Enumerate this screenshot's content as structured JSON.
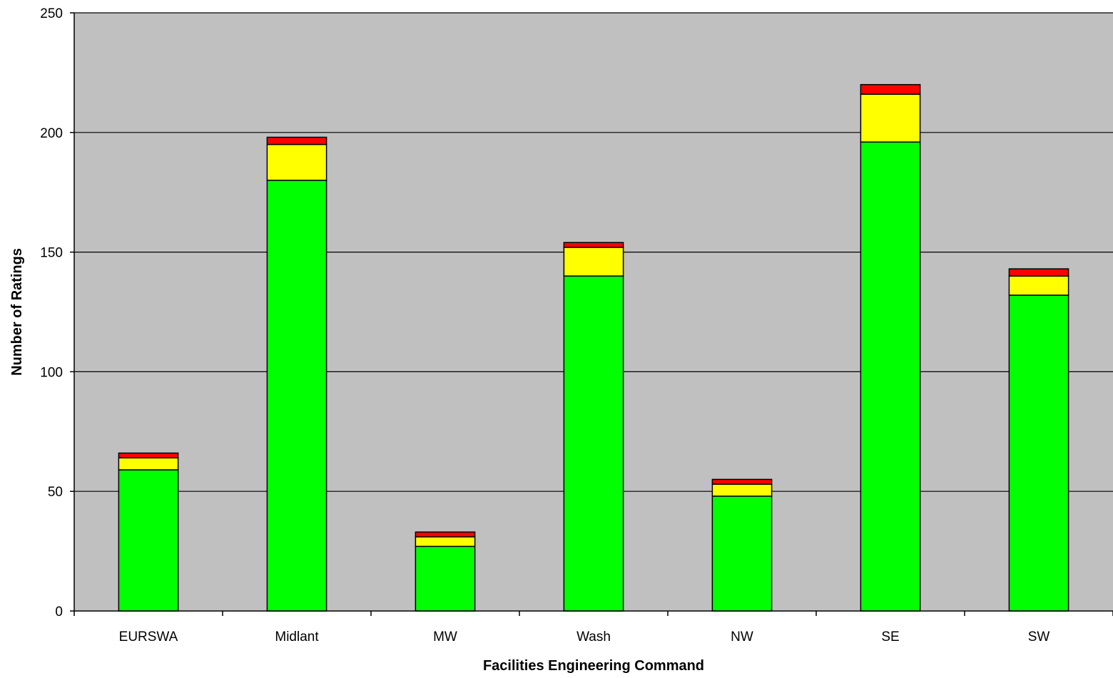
{
  "chart_data": {
    "type": "bar",
    "stacked": true,
    "title": "",
    "xlabel": "Facilities Engineering Command",
    "ylabel": "Number of Ratings",
    "ylim": [
      0,
      250
    ],
    "yticks": [
      0,
      50,
      100,
      150,
      200,
      250
    ],
    "grid": true,
    "legend": "none",
    "categories": [
      "EURSWA",
      "Midlant",
      "MW",
      "Wash",
      "NW",
      "SE",
      "SW"
    ],
    "series": [
      {
        "color": "#00ff00",
        "values": [
          59,
          180,
          27,
          140,
          48,
          196,
          132
        ]
      },
      {
        "color": "#ffff00",
        "values": [
          5,
          15,
          4,
          12,
          5,
          20,
          8
        ]
      },
      {
        "color": "#ff0000",
        "values": [
          2,
          3,
          2,
          2,
          2,
          4,
          3
        ]
      }
    ],
    "colors": {
      "plot_background": "#c0c0c0",
      "gridline": "#000000",
      "bar_outline": "#000000"
    }
  }
}
